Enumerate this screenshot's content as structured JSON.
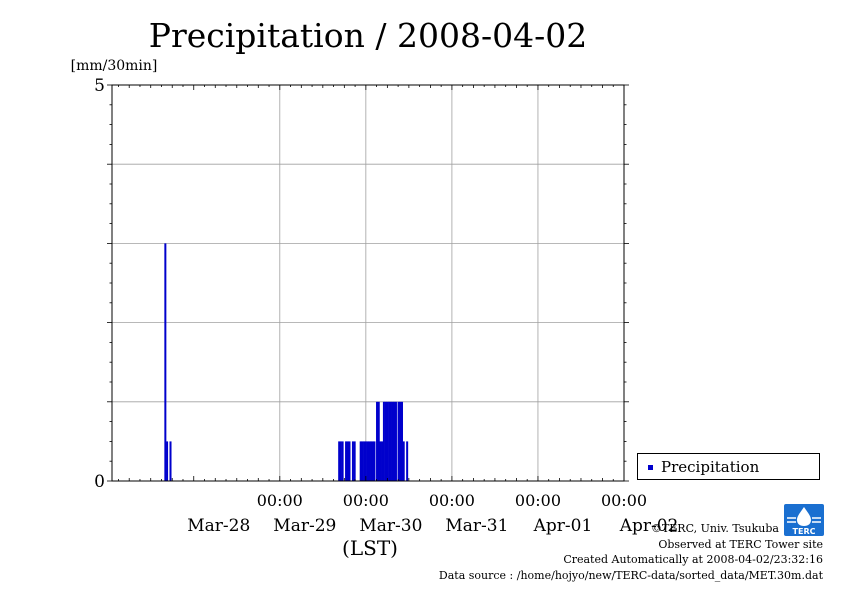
{
  "chart_data": {
    "type": "bar",
    "title": "Precipitation / 2008-04-02",
    "ylabel": "[mm/30min]",
    "xlabel": "(LST)",
    "ylim": [
      0,
      5
    ],
    "y_ticks": [
      "0",
      "5"
    ],
    "x_tick_time": [
      "00:00",
      "00:00",
      "00:00",
      "00:00",
      "00:00"
    ],
    "x_tick_dates": [
      "Mar-28",
      "Mar-29",
      "Mar-30",
      "Mar-31",
      "Apr-01",
      "Apr-02"
    ],
    "xrange_days": [
      -0.95,
      5
    ],
    "grid": true,
    "legend_position": "outside-right",
    "series": [
      {
        "name": "Precipitation",
        "color": "#0000cc",
        "points": [
          {
            "day": -0.33,
            "value": 3
          },
          {
            "day": -0.31,
            "value": 0.5
          },
          {
            "day": -0.27,
            "value": 0.5
          },
          {
            "day": 1.69,
            "value": 0.5
          },
          {
            "day": 1.71,
            "value": 0.5
          },
          {
            "day": 1.73,
            "value": 0.5
          },
          {
            "day": 1.77,
            "value": 0.5
          },
          {
            "day": 1.79,
            "value": 0.5
          },
          {
            "day": 1.81,
            "value": 0.5
          },
          {
            "day": 1.85,
            "value": 0.5
          },
          {
            "day": 1.87,
            "value": 0.5
          },
          {
            "day": 1.94,
            "value": 0.5
          },
          {
            "day": 1.96,
            "value": 0.5
          },
          {
            "day": 1.98,
            "value": 0.5
          },
          {
            "day": 2.0,
            "value": 0.5
          },
          {
            "day": 2.02,
            "value": 0.5
          },
          {
            "day": 2.04,
            "value": 0.5
          },
          {
            "day": 2.06,
            "value": 0.5
          },
          {
            "day": 2.08,
            "value": 0.5
          },
          {
            "day": 2.1,
            "value": 0.5
          },
          {
            "day": 2.13,
            "value": 1
          },
          {
            "day": 2.15,
            "value": 1
          },
          {
            "day": 2.17,
            "value": 0.5
          },
          {
            "day": 2.19,
            "value": 0.5
          },
          {
            "day": 2.21,
            "value": 1
          },
          {
            "day": 2.23,
            "value": 1
          },
          {
            "day": 2.25,
            "value": 1
          },
          {
            "day": 2.27,
            "value": 1
          },
          {
            "day": 2.29,
            "value": 1
          },
          {
            "day": 2.31,
            "value": 1
          },
          {
            "day": 2.33,
            "value": 1
          },
          {
            "day": 2.35,
            "value": 1
          },
          {
            "day": 2.38,
            "value": 1
          },
          {
            "day": 2.4,
            "value": 1
          },
          {
            "day": 2.42,
            "value": 1
          },
          {
            "day": 2.44,
            "value": 0.5
          },
          {
            "day": 2.48,
            "value": 0.5
          }
        ]
      }
    ]
  },
  "credits": {
    "line1": "©TERC, Univ. Tsukuba",
    "line2": "Observed at TERC Tower site",
    "line3": "Created Automatically at 2008-04-02/23:32:16",
    "line4": "Data source : /home/hojyo/new/TERC-data/sorted_data/MET.30m.dat"
  },
  "logo": {
    "text": "TERC",
    "color": "#1a6fd0"
  }
}
